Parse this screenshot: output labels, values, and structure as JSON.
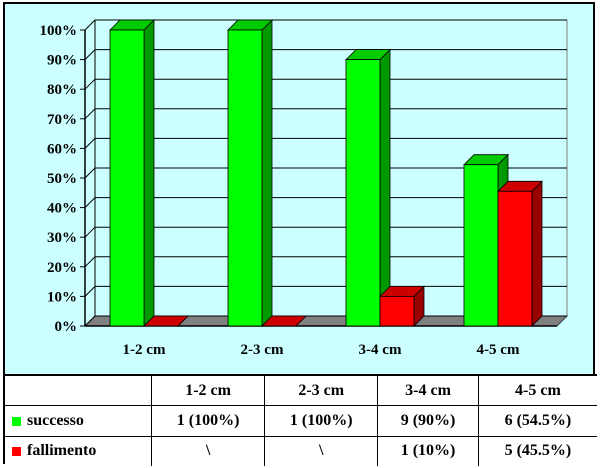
{
  "chart_data": {
    "type": "bar",
    "categories": [
      "1-2 cm",
      "2-3 cm",
      "3-4 cm",
      "4-5 cm"
    ],
    "series": [
      {
        "name": "successo",
        "color": "#00ff00",
        "values": [
          100,
          100,
          90,
          54.5
        ]
      },
      {
        "name": "fallimento",
        "color": "#ff0000",
        "values": [
          0,
          0,
          10,
          45.5
        ]
      }
    ],
    "ylim": [
      0,
      100
    ],
    "yticks": [
      "0%",
      "10%",
      "20%",
      "30%",
      "40%",
      "50%",
      "60%",
      "70%",
      "80%",
      "90%",
      "100%"
    ],
    "grid": true,
    "style": "3d-column"
  },
  "table": {
    "headers": [
      "1-2 cm",
      "2-3 cm",
      "3-4 cm",
      "4-5 cm"
    ],
    "rows": [
      {
        "label": "successo",
        "color": "#00ff00",
        "cells": [
          "1 (100%)",
          "1 (100%)",
          "9 (90%)",
          "6 (54.5%)"
        ]
      },
      {
        "label": "fallimento",
        "color": "#ff0000",
        "cells": [
          "\\",
          "\\",
          "1 (10%)",
          "5 (45.5%)"
        ]
      }
    ]
  }
}
